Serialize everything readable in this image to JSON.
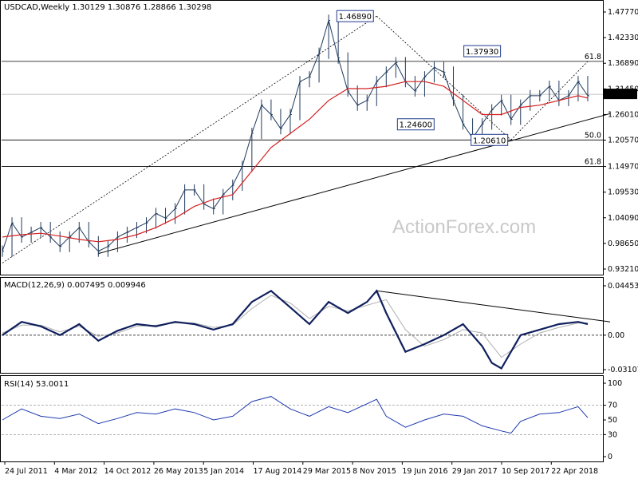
{
  "chart_data": {
    "type": "line",
    "symbol": "USDCAD",
    "timeframe": "Weekly",
    "header_text": "USDCAD,Weekly  1.30129 1.30876 1.28866 1.30298",
    "ohlc": {
      "open": 1.30129,
      "high": 1.30876,
      "low": 1.28866,
      "close": 1.30298
    },
    "last_price_label": "1.30298",
    "watermark": "ActionForex.com",
    "x_axis_labels": [
      "24 Jul 2011",
      "4 Mar 2012",
      "14 Oct 2012",
      "26 May 2013",
      "5 Jan 2014",
      "17 Aug 2014",
      "29 Mar 2015",
      "8 Nov 2015",
      "19 Jun 2016",
      "29 Jan 2017",
      "10 Sep 2017",
      "22 Apr 2018"
    ],
    "price_panel": {
      "y_ticks": [
        "1.47770",
        "1.42330",
        "1.36890",
        "1.31450",
        "1.26010",
        "1.20570",
        "1.14970",
        "1.09530",
        "1.04090",
        "0.98650",
        "0.93210"
      ],
      "ylim": [
        0.9321,
        1.4777
      ],
      "series": [
        {
          "style": "price",
          "x": [
            0,
            6,
            12,
            18,
            24,
            30,
            36,
            42,
            48,
            54,
            60,
            66,
            72,
            78,
            84,
            90,
            96,
            102,
            108,
            114,
            120,
            126,
            132,
            138,
            144,
            150,
            156,
            162,
            168,
            174,
            180,
            186,
            192,
            198,
            204,
            210,
            216,
            222,
            228,
            234,
            240,
            246,
            252,
            258,
            264,
            270,
            276,
            282,
            288,
            294,
            300,
            306,
            312,
            318,
            324,
            330,
            336,
            342,
            348,
            354,
            360,
            366
          ],
          "y": [
            0.97,
            1.03,
            1.0,
            1.01,
            1.02,
            1.0,
            0.98,
            1.0,
            1.02,
            0.99,
            0.97,
            0.98,
            1.0,
            1.01,
            1.02,
            1.03,
            1.05,
            1.04,
            1.06,
            1.1,
            1.1,
            1.07,
            1.06,
            1.09,
            1.11,
            1.15,
            1.22,
            1.28,
            1.26,
            1.23,
            1.26,
            1.33,
            1.34,
            1.39,
            1.46,
            1.38,
            1.31,
            1.28,
            1.29,
            1.33,
            1.35,
            1.37,
            1.33,
            1.31,
            1.34,
            1.36,
            1.35,
            1.29,
            1.24,
            1.21,
            1.24,
            1.27,
            1.29,
            1.25,
            1.28,
            1.3,
            1.3,
            1.32,
            1.29,
            1.3,
            1.33,
            1.3
          ]
        },
        {
          "style": "ma",
          "x": [
            0,
            12,
            24,
            36,
            48,
            60,
            72,
            84,
            96,
            108,
            120,
            132,
            144,
            156,
            168,
            180,
            192,
            204,
            216,
            228,
            240,
            252,
            264,
            276,
            288,
            300,
            312,
            324,
            336,
            348,
            360,
            366
          ],
          "y": [
            1.0,
            1.005,
            1.008,
            1.002,
            0.995,
            0.99,
            0.995,
            1.005,
            1.02,
            1.04,
            1.065,
            1.08,
            1.09,
            1.14,
            1.19,
            1.22,
            1.25,
            1.29,
            1.315,
            1.315,
            1.32,
            1.33,
            1.33,
            1.32,
            1.29,
            1.26,
            1.26,
            1.275,
            1.28,
            1.29,
            1.3,
            1.295
          ]
        }
      ],
      "levels": [
        {
          "label": "61.8",
          "value": 1.3729
        },
        {
          "label": "50.0",
          "value": 1.2061
        },
        {
          "label": "61.8",
          "value": 1.1497
        }
      ],
      "annotations": [
        {
          "text": "1.46890",
          "x": 234,
          "y": 1.4689
        },
        {
          "text": "1.37930",
          "x": 300,
          "y": 1.3793
        },
        {
          "text": "1.24600",
          "x": 246,
          "y": 1.246
        },
        {
          "text": "1.20610",
          "x": 310,
          "y": 1.2061
        }
      ],
      "trendlines": [
        {
          "style": "dotted",
          "x": [
            0,
            234
          ],
          "y": [
            0.945,
            1.4689
          ]
        },
        {
          "style": "dotted",
          "x": [
            234,
            318
          ],
          "y": [
            1.4689,
            1.2061
          ]
        },
        {
          "style": "dotted",
          "x": [
            318,
            366
          ],
          "y": [
            1.2061,
            1.3729
          ]
        },
        {
          "style": "solid",
          "x": [
            60,
            380
          ],
          "y": [
            0.965,
            1.262
          ]
        }
      ]
    },
    "macd_panel": {
      "label": "MACD(12,26,9) 0.007495 0.009946",
      "y_ticks": [
        "0.044534",
        "0.00",
        "-0.031072"
      ],
      "ylim": [
        -0.031072,
        0.044534
      ],
      "series": [
        {
          "style": "macd",
          "x": [
            0,
            12,
            24,
            36,
            48,
            60,
            72,
            84,
            96,
            108,
            120,
            132,
            144,
            156,
            168,
            180,
            192,
            204,
            216,
            228,
            234,
            240,
            252,
            264,
            276,
            288,
            300,
            306,
            312,
            318,
            324,
            336,
            348,
            360,
            366
          ],
          "y": [
            0.0,
            0.012,
            0.008,
            0.0,
            0.01,
            -0.005,
            0.004,
            0.01,
            0.008,
            0.012,
            0.01,
            0.005,
            0.01,
            0.03,
            0.04,
            0.025,
            0.01,
            0.03,
            0.02,
            0.03,
            0.04,
            0.02,
            -0.015,
            -0.008,
            0.0,
            0.01,
            -0.01,
            -0.025,
            -0.03,
            -0.015,
            0.0,
            0.005,
            0.01,
            0.012,
            0.01
          ]
        },
        {
          "style": "signal",
          "x": [
            0,
            12,
            24,
            36,
            48,
            60,
            72,
            84,
            96,
            108,
            120,
            132,
            144,
            156,
            168,
            180,
            192,
            204,
            216,
            228,
            240,
            252,
            264,
            276,
            288,
            300,
            312,
            324,
            336,
            348,
            360,
            366
          ],
          "y": [
            0.002,
            0.009,
            0.009,
            0.003,
            0.008,
            -0.001,
            0.002,
            0.008,
            0.009,
            0.011,
            0.011,
            0.007,
            0.009,
            0.024,
            0.036,
            0.029,
            0.015,
            0.026,
            0.022,
            0.027,
            0.032,
            0.005,
            -0.01,
            -0.004,
            0.005,
            0.002,
            -0.02,
            -0.008,
            0.002,
            0.007,
            0.011,
            0.011
          ]
        }
      ],
      "trendline": {
        "x": [
          234,
          380
        ],
        "y": [
          0.04,
          0.012
        ]
      }
    },
    "rsi_panel": {
      "label": "RSI(14) 53.0011",
      "y_ticks": [
        "100",
        "70",
        "50",
        "30",
        "0"
      ],
      "levels": [
        70,
        30
      ],
      "ylim": [
        0,
        100
      ],
      "series": [
        {
          "style": "rsi",
          "x": [
            0,
            12,
            24,
            36,
            48,
            60,
            72,
            84,
            96,
            108,
            120,
            132,
            144,
            156,
            168,
            180,
            192,
            204,
            216,
            228,
            234,
            240,
            252,
            264,
            276,
            288,
            300,
            312,
            318,
            324,
            336,
            348,
            360,
            366
          ],
          "y": [
            50,
            65,
            55,
            52,
            58,
            45,
            52,
            60,
            58,
            65,
            60,
            50,
            55,
            75,
            82,
            65,
            55,
            68,
            60,
            72,
            78,
            55,
            40,
            50,
            58,
            55,
            42,
            35,
            32,
            48,
            58,
            60,
            68,
            53
          ]
        }
      ]
    }
  }
}
